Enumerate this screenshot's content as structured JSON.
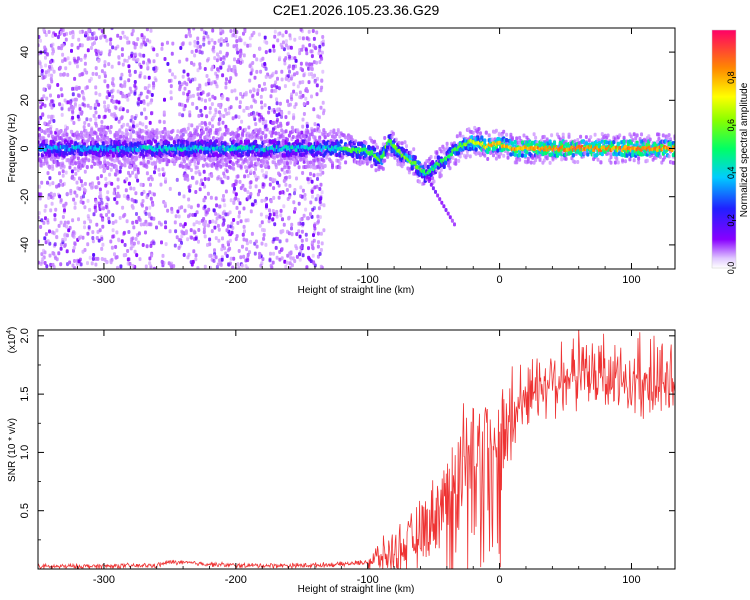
{
  "figure": {
    "title": "C2E1.2026.105.23.36.G29"
  },
  "chart_data": [
    {
      "type": "heatmap",
      "title": "",
      "xlabel": "Height of straight line (km)",
      "ylabel": "Frequency (Hz)",
      "xlim": [
        -350,
        133
      ],
      "ylim": [
        -50,
        50
      ],
      "xticks": [
        -300,
        -200,
        -100,
        0,
        100
      ],
      "yticks": [
        -40,
        -20,
        0,
        20,
        40
      ],
      "colorbar": {
        "label": "Normalized spectral amplitude",
        "range": [
          0,
          1
        ],
        "ticks": [
          0.0,
          0.2,
          0.4,
          0.6,
          0.8
        ],
        "colormap": "rainbow (violet-blue-cyan-green-yellow-red)"
      },
      "ridge_frequency_hz": [
        {
          "x": -350,
          "y": 0
        },
        {
          "x": -120,
          "y": 0
        },
        {
          "x": -100,
          "y": -1
        },
        {
          "x": -90,
          "y": -5
        },
        {
          "x": -84,
          "y": 3
        },
        {
          "x": -75,
          "y": -2
        },
        {
          "x": -65,
          "y": -6
        },
        {
          "x": -55,
          "y": -11
        },
        {
          "x": -50,
          "y": -8
        },
        {
          "x": -40,
          "y": -4
        },
        {
          "x": -30,
          "y": 1
        },
        {
          "x": -20,
          "y": 3
        },
        {
          "x": -10,
          "y": 1
        },
        {
          "x": 0,
          "y": 2
        },
        {
          "x": 10,
          "y": 0
        },
        {
          "x": 133,
          "y": 0
        }
      ],
      "ridge_amplitude": [
        {
          "x": -350,
          "a": 0.45
        },
        {
          "x": -250,
          "a": 0.5
        },
        {
          "x": -150,
          "a": 0.5
        },
        {
          "x": -100,
          "a": 0.6
        },
        {
          "x": -70,
          "a": 0.65
        },
        {
          "x": -50,
          "a": 0.55
        },
        {
          "x": -30,
          "a": 0.6
        },
        {
          "x": -15,
          "a": 0.8
        },
        {
          "x": 0,
          "a": 0.85
        },
        {
          "x": 30,
          "a": 0.9
        },
        {
          "x": 133,
          "a": 0.9
        }
      ],
      "noise_region_x": [
        -350,
        -133
      ],
      "notes": "Low-amplitude violet speckle across all frequencies for x < -133 km; clean carrier ridge near 0 Hz elsewhere."
    },
    {
      "type": "line",
      "title": "",
      "xlabel": "Height of straight line (km)",
      "ylabel": "SNR (10 * v/v)",
      "y_multiplier_label": "(x10",
      "y_multiplier_exponent": "4",
      "y_multiplier_close": ")",
      "xlim": [
        -350,
        133
      ],
      "ylim": [
        0,
        2.05
      ],
      "xticks": [
        -300,
        -200,
        -100,
        0,
        100
      ],
      "yticks": [
        0.5,
        1.0,
        1.5,
        2.0
      ],
      "yticklabels": [
        "0.5",
        "1.0",
        "1.5",
        "2.0"
      ],
      "color": "#ee3333",
      "series": [
        {
          "envelope": [
            {
              "x": -350,
              "y": 0.02
            },
            {
              "x": -260,
              "y": 0.03
            },
            {
              "x": -250,
              "y": 0.06
            },
            {
              "x": -200,
              "y": 0.03
            },
            {
              "x": -150,
              "y": 0.03
            },
            {
              "x": -120,
              "y": 0.04
            },
            {
              "x": -100,
              "y": 0.06
            },
            {
              "x": -85,
              "y": 0.12
            },
            {
              "x": -70,
              "y": 0.2
            },
            {
              "x": -60,
              "y": 0.3
            },
            {
              "x": -50,
              "y": 0.45
            },
            {
              "x": -45,
              "y": 0.55
            },
            {
              "x": -40,
              "y": 0.65
            },
            {
              "x": -35,
              "y": 0.8
            },
            {
              "x": -30,
              "y": 0.95
            },
            {
              "x": -25,
              "y": 1.05
            },
            {
              "x": -20,
              "y": 1.05
            },
            {
              "x": -15,
              "y": 1.1
            },
            {
              "x": -10,
              "y": 1.15
            },
            {
              "x": -5,
              "y": 1.2
            },
            {
              "x": 0,
              "y": 1.1
            },
            {
              "x": 5,
              "y": 1.15
            },
            {
              "x": 10,
              "y": 1.3
            },
            {
              "x": 15,
              "y": 1.4
            },
            {
              "x": 20,
              "y": 1.5
            },
            {
              "x": 30,
              "y": 1.58
            },
            {
              "x": 40,
              "y": 1.62
            },
            {
              "x": 60,
              "y": 1.65
            },
            {
              "x": 80,
              "y": 1.62
            },
            {
              "x": 100,
              "y": 1.6
            },
            {
              "x": 120,
              "y": 1.58
            },
            {
              "x": 133,
              "y": 1.6
            }
          ]
        }
      ]
    }
  ]
}
